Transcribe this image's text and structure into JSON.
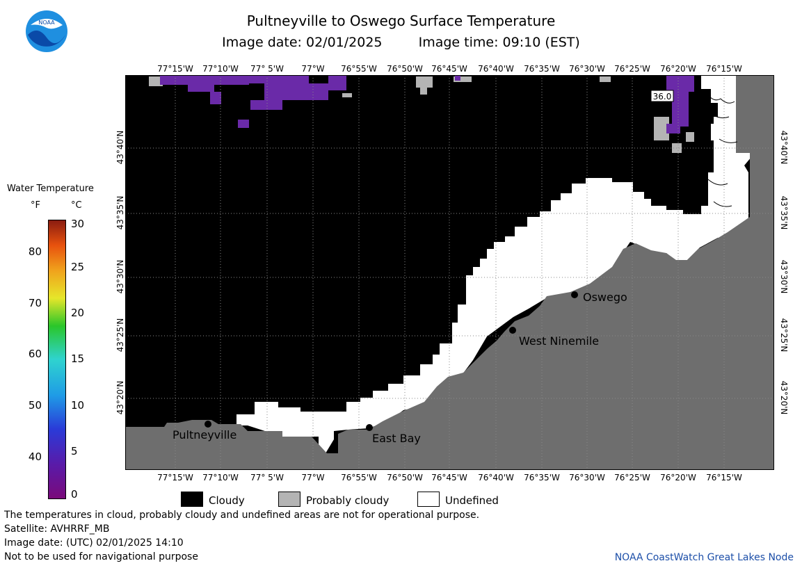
{
  "header": {
    "title": "Pultneyville to Oswego Surface Temperature",
    "image_date_label": "Image date: 02/01/2025",
    "image_time_label": "Image time: 09:10 (EST)"
  },
  "logo": {
    "text": "NOAA"
  },
  "map": {
    "lon_labels": [
      "77°15'W",
      "77°10'W",
      "77° 5'W",
      "77°W",
      "76°55'W",
      "76°50'W",
      "76°45'W",
      "76°40'W",
      "76°35'W",
      "76°30'W",
      "76°25'W",
      "76°20'W",
      "76°15'W"
    ],
    "lat_labels": [
      "43°40'N",
      "43°35'N",
      "43°30'N",
      "43°25'N",
      "43°20'N"
    ],
    "places": {
      "pultneyville": "Pultneyville",
      "east_bay": "East Bay",
      "west_ninemile": "West Ninemile",
      "oswego": "Oswego"
    },
    "temp_annotation": "36.0",
    "colors": {
      "cloudy": "#000000",
      "probably_cloudy": "#b4b4b4",
      "undefined": "#ffffff",
      "land": "#6e6e6e",
      "cold_water": "#6a2aa8"
    }
  },
  "colorbar": {
    "title": "Water Temperature",
    "unit_f": "°F",
    "unit_c": "°C",
    "f_ticks": [
      "80",
      "70",
      "60",
      "50",
      "40"
    ],
    "c_ticks": [
      "30",
      "25",
      "20",
      "15",
      "10",
      "5",
      "0"
    ]
  },
  "legend": {
    "cloudy": "Cloudy",
    "probably_cloudy": "Probably cloudy",
    "undefined": "Undefined"
  },
  "footer": {
    "line1": "The temperatures in cloud, probably cloudy and undefined areas are not for operational purpose.",
    "line2": "Satellite: AVHRRF_MB",
    "line3": "Image date: (UTC) 02/01/2025  14:10",
    "line4": "Not to be used for navigational purpose",
    "credit": "NOAA CoastWatch Great Lakes Node"
  }
}
